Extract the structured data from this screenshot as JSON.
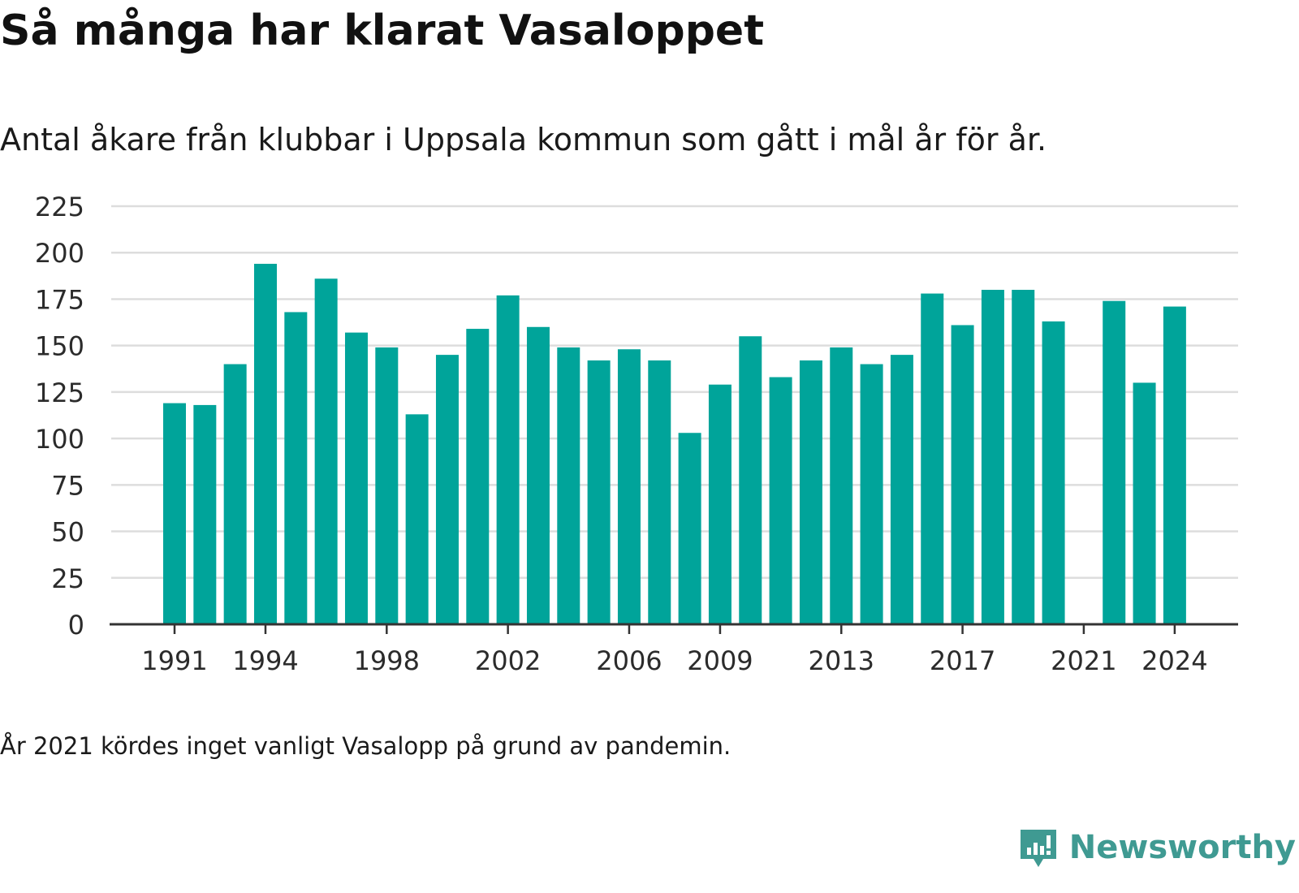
{
  "chart_data": {
    "type": "bar",
    "title": "Så många har klarat Vasaloppet",
    "subtitle": "Antal åkare från klubbar i Uppsala kommun som gått i mål år för år.",
    "xlabel": "",
    "ylabel": "",
    "ylim": [
      0,
      225
    ],
    "yticks": [
      0,
      25,
      50,
      75,
      100,
      125,
      150,
      175,
      200,
      225
    ],
    "xtick_labels": [
      "1991",
      "1994",
      "1998",
      "2002",
      "2006",
      "2009",
      "2013",
      "2017",
      "2021",
      "2024"
    ],
    "categories": [
      1991,
      1992,
      1993,
      1994,
      1995,
      1996,
      1997,
      1998,
      1999,
      2000,
      2001,
      2002,
      2003,
      2004,
      2005,
      2006,
      2007,
      2008,
      2009,
      2010,
      2011,
      2012,
      2013,
      2014,
      2015,
      2016,
      2017,
      2018,
      2019,
      2020,
      2021,
      2022,
      2023,
      2024
    ],
    "values": [
      119,
      118,
      140,
      194,
      168,
      186,
      157,
      149,
      113,
      145,
      159,
      177,
      160,
      149,
      142,
      148,
      142,
      103,
      129,
      155,
      133,
      142,
      149,
      140,
      145,
      178,
      161,
      180,
      180,
      163,
      null,
      174,
      130,
      171
    ],
    "grid": true,
    "legend": "none",
    "colors": {
      "bar": "#00a49a",
      "grid": "#dddddd",
      "axis": "#333333"
    }
  },
  "note": "År 2021 kördes inget vanligt Vasalopp på grund av pandemin.",
  "brand": {
    "name": "Newsworthy",
    "icon": "newsworthy-logo-icon",
    "color": "#3f9a92"
  }
}
